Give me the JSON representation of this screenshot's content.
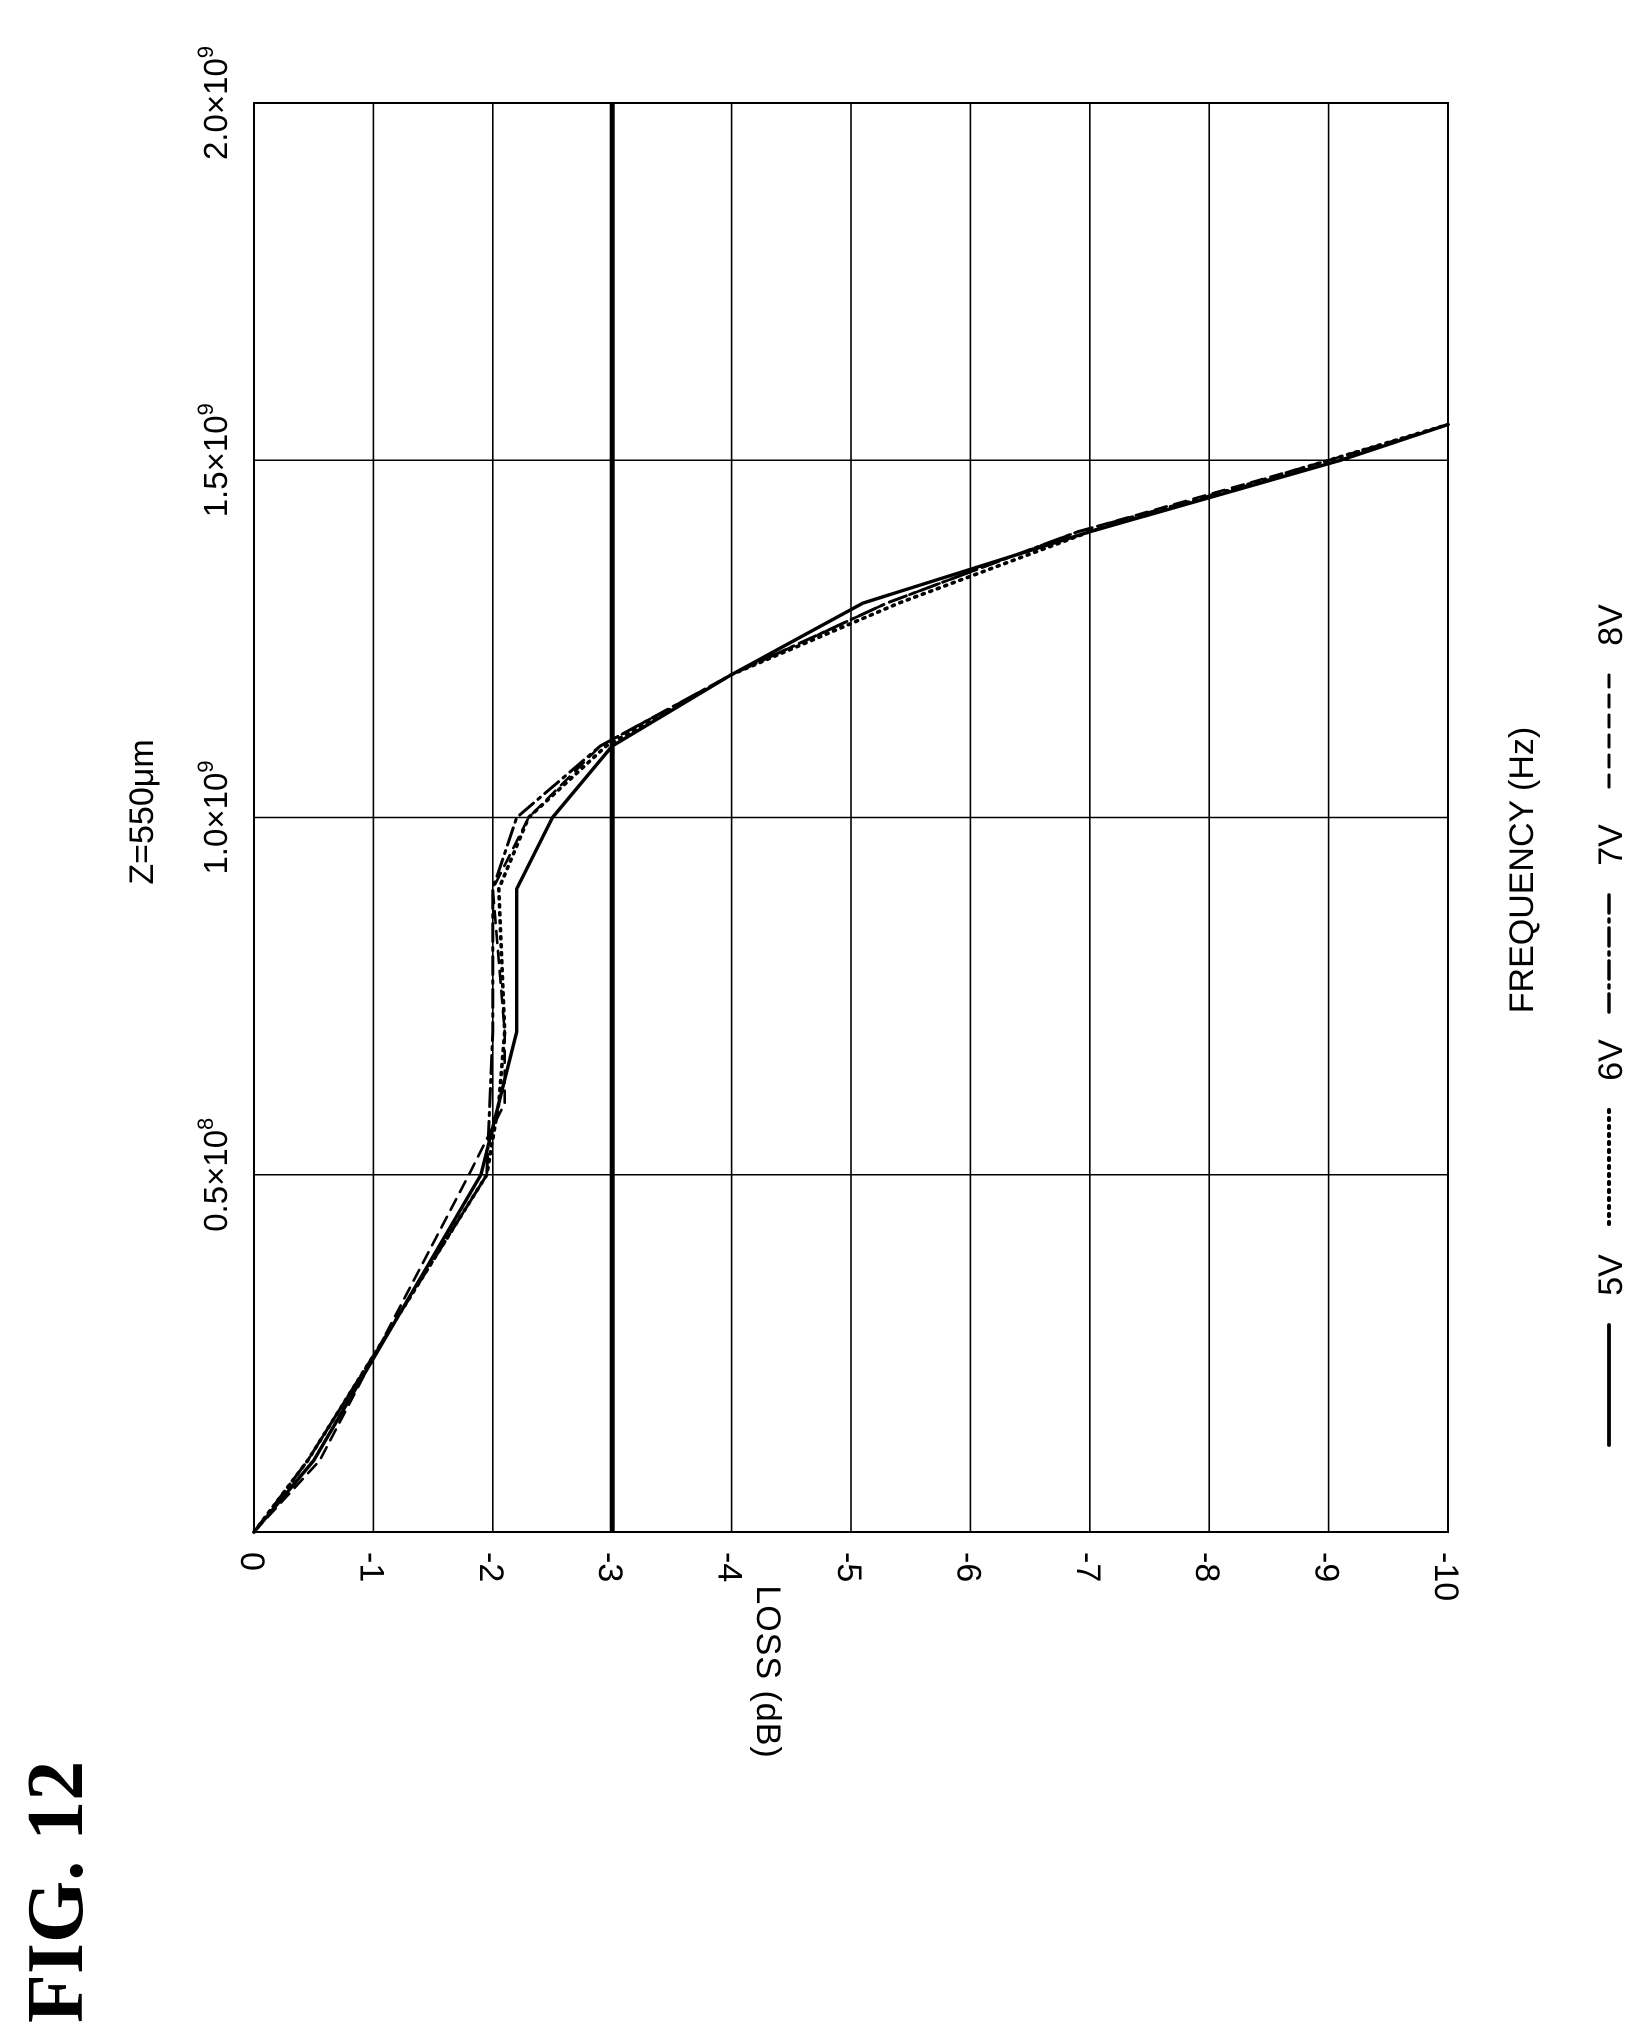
{
  "figure_label": "FIG. 12",
  "chart_data": {
    "type": "line",
    "title": "Z=550μm",
    "xlabel": "FREQUENCY (Hz)",
    "ylabel": "LOSS (dB)",
    "x_range": [
      0,
      2000000000
    ],
    "y_range": [
      0,
      -10
    ],
    "x_ticks": [
      {
        "value": 500000000,
        "mantissa": "0.5×10",
        "exp": "8"
      },
      {
        "value": 1000000000,
        "mantissa": "1.0×10",
        "exp": "9"
      },
      {
        "value": 1500000000,
        "mantissa": "1.5×10",
        "exp": "9"
      },
      {
        "value": 2000000000,
        "mantissa": "2.0×10",
        "exp": "9"
      }
    ],
    "y_ticks": [
      "0",
      "-1",
      "-2",
      "-3",
      "-4",
      "-5",
      "-6",
      "-7",
      "-8",
      "-9",
      "-10"
    ],
    "y_tick_values": [
      0,
      -1,
      -2,
      -3,
      -4,
      -5,
      -6,
      -7,
      -8,
      -9,
      -10
    ],
    "grid": true,
    "reference_line": -3,
    "legend_position": "bottom",
    "series": [
      {
        "name": "5V",
        "style": "solid",
        "points": [
          [
            0,
            0
          ],
          [
            100000000,
            -0.5
          ],
          [
            500000000,
            -1.9
          ],
          [
            700000000,
            -2.2
          ],
          [
            900000000,
            -2.2
          ],
          [
            1000000000,
            -2.5
          ],
          [
            1100000000,
            -3.0
          ],
          [
            1200000000,
            -4.0
          ],
          [
            1300000000,
            -5.1
          ],
          [
            1400000000,
            -7.0
          ],
          [
            1500000000,
            -9.1
          ],
          [
            1550000000,
            -10.0
          ]
        ]
      },
      {
        "name": "6V",
        "style": "dotted",
        "points": [
          [
            0,
            0
          ],
          [
            100000000,
            -0.45
          ],
          [
            500000000,
            -1.95
          ],
          [
            600000000,
            -2.05
          ],
          [
            700000000,
            -2.1
          ],
          [
            900000000,
            -2.05
          ],
          [
            1000000000,
            -2.3
          ],
          [
            1100000000,
            -2.95
          ],
          [
            1200000000,
            -4.0
          ],
          [
            1300000000,
            -5.4
          ],
          [
            1400000000,
            -7.0
          ],
          [
            1500000000,
            -9.0
          ],
          [
            1550000000,
            -10.0
          ]
        ]
      },
      {
        "name": "7V",
        "style": "dashdot",
        "points": [
          [
            0,
            0
          ],
          [
            100000000,
            -0.45
          ],
          [
            500000000,
            -1.95
          ],
          [
            700000000,
            -2.0
          ],
          [
            900000000,
            -2.0
          ],
          [
            1000000000,
            -2.2
          ],
          [
            1100000000,
            -2.9
          ],
          [
            1200000000,
            -4.0
          ],
          [
            1300000000,
            -5.3
          ],
          [
            1400000000,
            -6.9
          ],
          [
            1500000000,
            -9.1
          ],
          [
            1550000000,
            -10.0
          ]
        ]
      },
      {
        "name": "8V",
        "style": "dashed",
        "points": [
          [
            0,
            0
          ],
          [
            100000000,
            -0.55
          ],
          [
            500000000,
            -1.8
          ],
          [
            600000000,
            -2.1
          ],
          [
            700000000,
            -2.1
          ],
          [
            900000000,
            -2.0
          ],
          [
            1000000000,
            -2.3
          ],
          [
            1100000000,
            -2.9
          ],
          [
            1200000000,
            -4.0
          ],
          [
            1300000000,
            -5.3
          ],
          [
            1400000000,
            -6.9
          ],
          [
            1500000000,
            -9.0
          ],
          [
            1550000000,
            -10.0
          ]
        ]
      }
    ]
  }
}
